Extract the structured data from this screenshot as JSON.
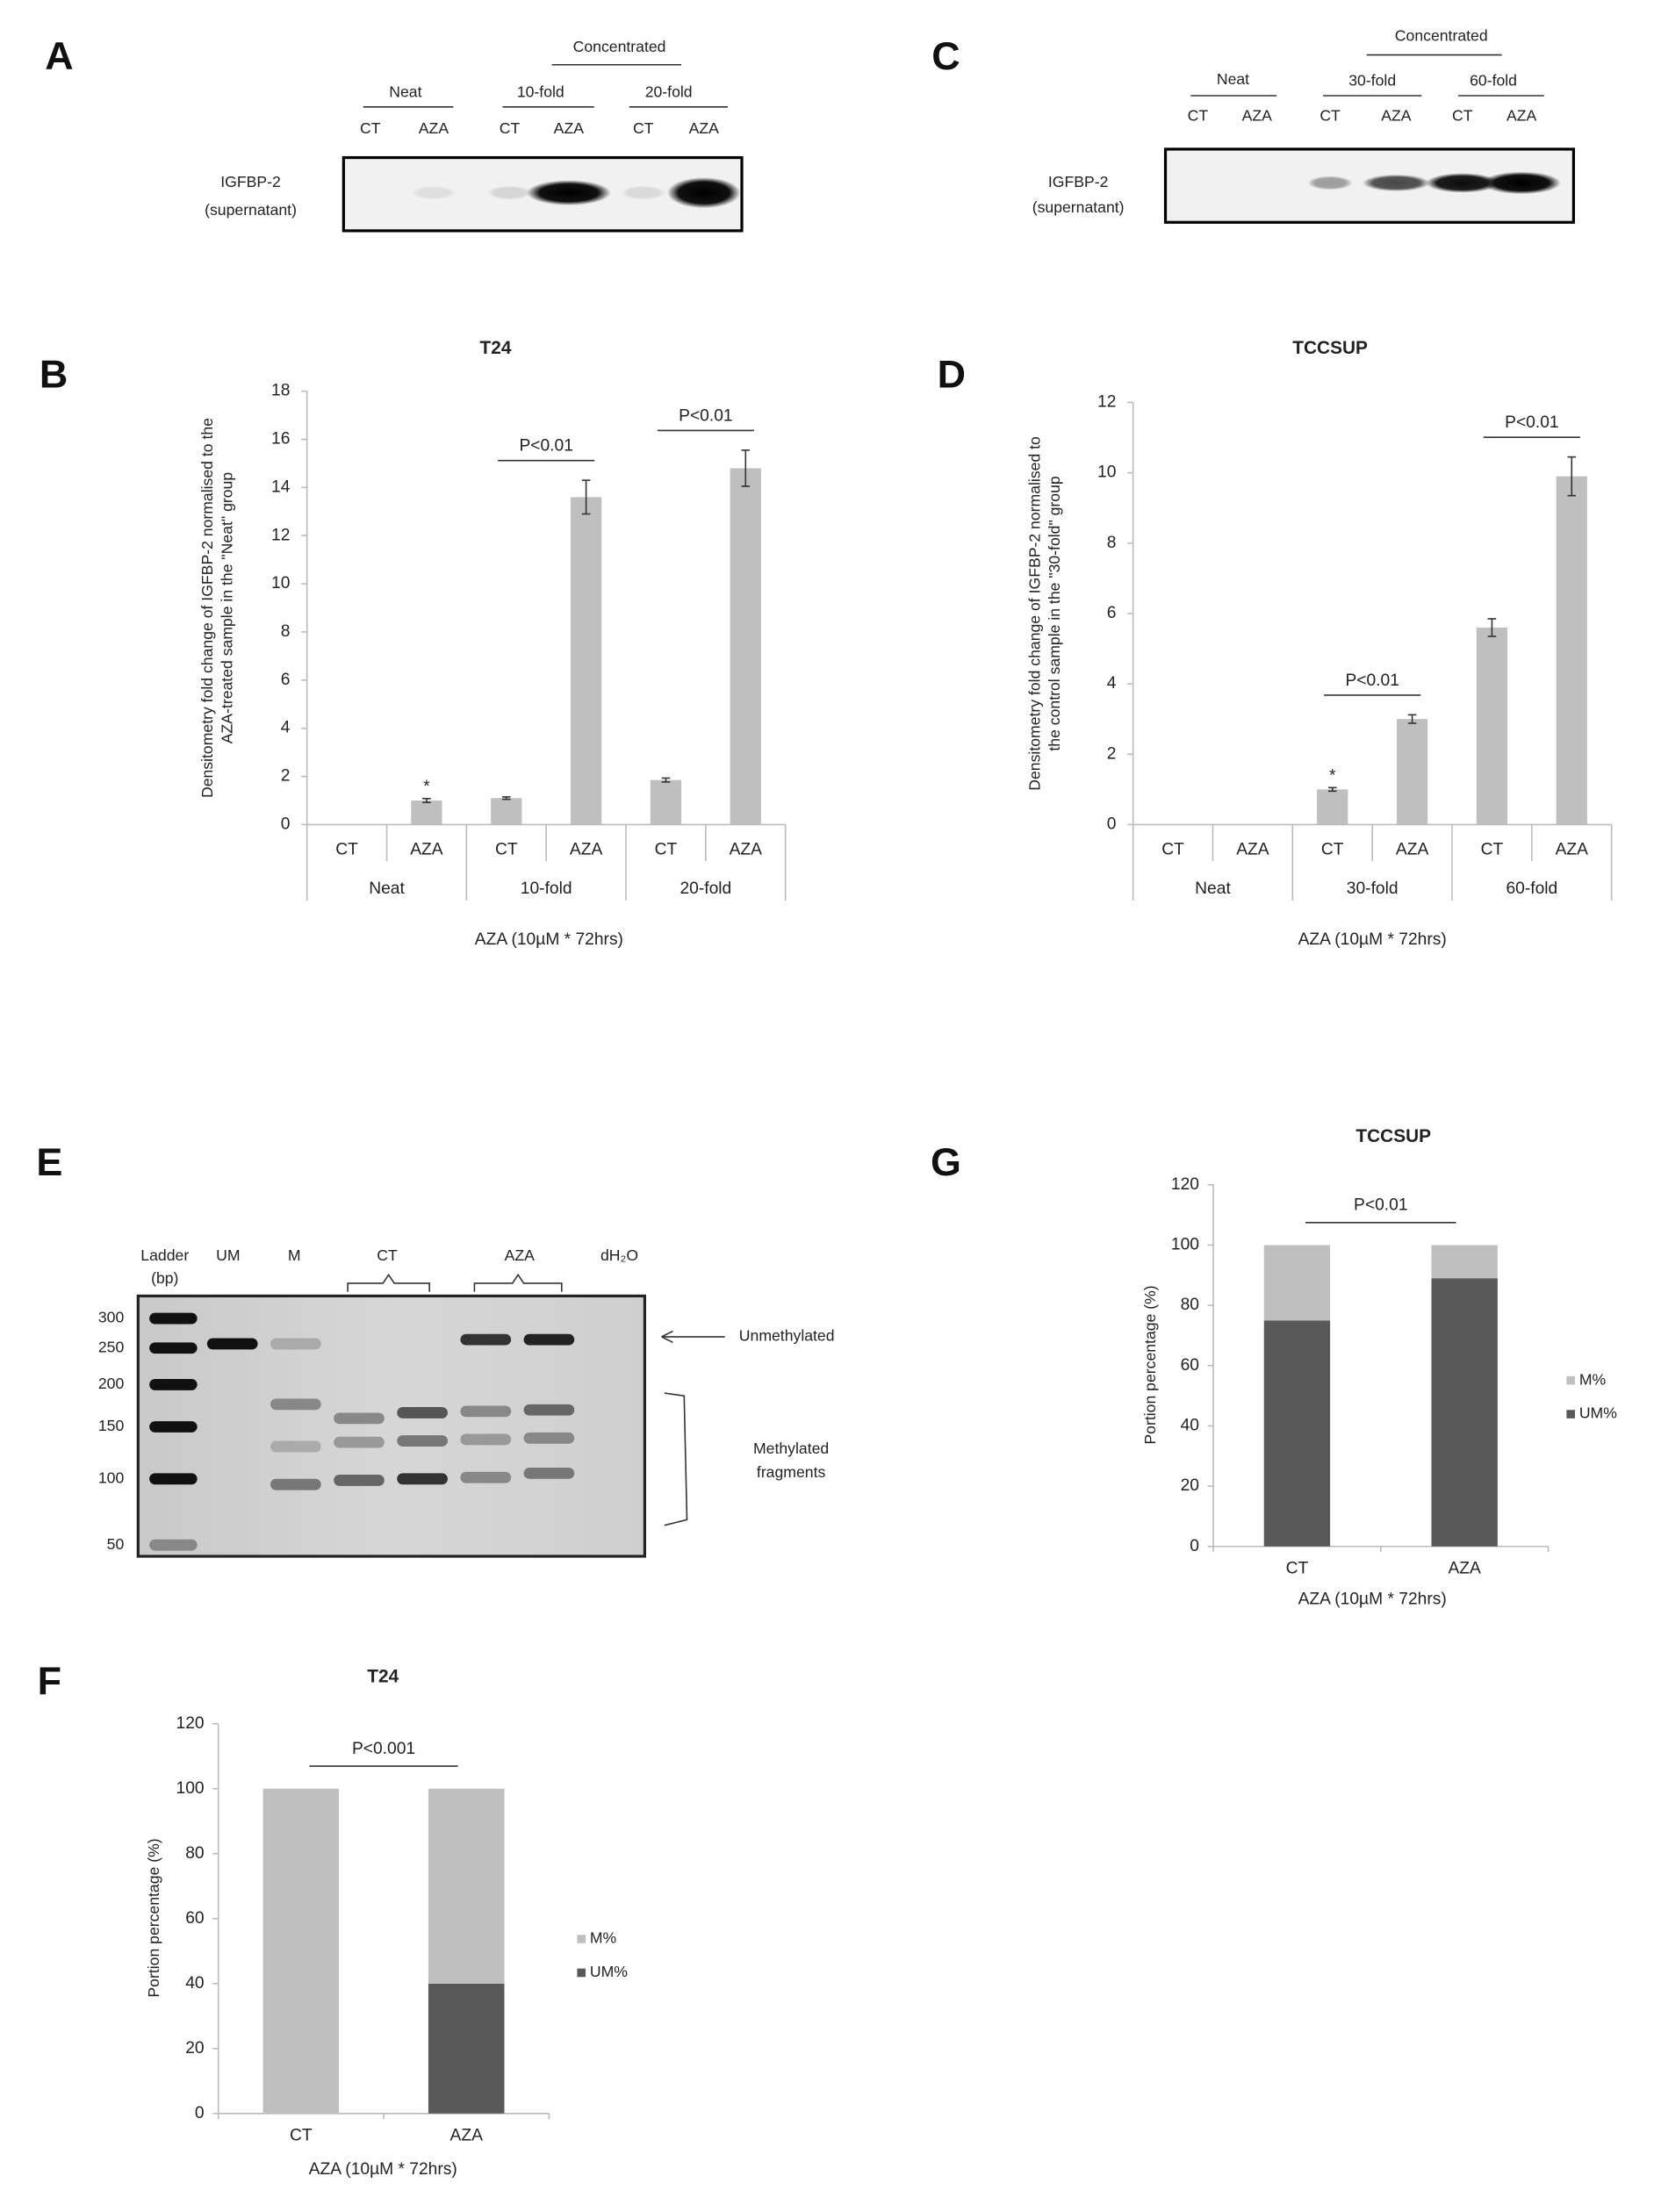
{
  "panels": {
    "labels": [
      "A",
      "B",
      "C",
      "D",
      "E",
      "F",
      "G"
    ]
  },
  "blots": [
    {
      "concentrated": "Concentrated",
      "groups": [
        "Neat",
        "10-fold",
        "20-fold"
      ],
      "lanes": [
        "CT",
        "AZA",
        "CT",
        "AZA",
        "CT",
        "AZA"
      ],
      "row_label": [
        "IGFBP-2",
        "(supernatant)"
      ]
    },
    {
      "concentrated": "Concentrated",
      "groups": [
        "Neat",
        "30-fold",
        "60-fold"
      ],
      "lanes": [
        "CT",
        "AZA",
        "CT",
        "AZA",
        "CT",
        "AZA"
      ],
      "row_label": [
        "IGFBP-2",
        "(supernatant)"
      ]
    }
  ],
  "gel": {
    "lanes": [
      [
        "Ladder",
        "(bp)"
      ],
      "UM",
      "M",
      "CT",
      "AZA",
      "dH₂O"
    ],
    "sizes": [
      300,
      250,
      200,
      150,
      100,
      50
    ],
    "unmethylated": "Unmethylated",
    "methylated": [
      "Methylated",
      "fragments"
    ]
  },
  "chart_data": [
    {
      "type": "bar",
      "title": "T24",
      "ylabel": [
        "Densitometry fold change of IGFBP-2 normalised to the",
        "AZA-treated  sample in the \"Neat\" group"
      ],
      "xlabel": "AZA (10µM * 72hrs)",
      "categories": [
        "CT",
        "AZA",
        "CT",
        "AZA",
        "CT",
        "AZA"
      ],
      "groups": [
        "Neat",
        "10-fold",
        "20-fold"
      ],
      "values": [
        0,
        1,
        1.1,
        13.6,
        1.85,
        14.8
      ],
      "errors": [
        0,
        0.08,
        0.05,
        0.7,
        0.08,
        0.75
      ],
      "color": "#bfbfbf",
      "ylim": [
        0,
        18
      ],
      "yticks": [
        0,
        2,
        4,
        6,
        8,
        10,
        12,
        14,
        16,
        18
      ],
      "annotations": [
        "P<0.01",
        "P<0.01",
        "*"
      ]
    },
    {
      "type": "bar",
      "title": "TCCSUP",
      "ylabel": [
        "Densitometry fold change of IGFBP-2 normalised to",
        "the control sample in the \"30-fold\" group"
      ],
      "xlabel": "AZA (10µM * 72hrs)",
      "categories": [
        "CT",
        "AZA",
        "CT",
        "AZA",
        "CT",
        "AZA"
      ],
      "groups": [
        "Neat",
        "30-fold",
        "60-fold"
      ],
      "values": [
        0,
        0,
        1,
        3,
        5.6,
        9.9
      ],
      "errors": [
        0,
        0,
        0.05,
        0.12,
        0.25,
        0.55
      ],
      "color": "#bfbfbf",
      "ylim": [
        0,
        12
      ],
      "yticks": [
        0,
        2,
        4,
        6,
        8,
        10,
        12
      ],
      "annotations": [
        "P<0.01",
        "P<0.01",
        "*"
      ]
    },
    {
      "type": "stacked_bar",
      "title": "TCCSUP",
      "ylabel": [
        "Portion percentage (%)"
      ],
      "xlabel": "AZA (10µM * 72hrs)",
      "categories": [
        "CT",
        "AZA"
      ],
      "series": [
        {
          "name": "M%",
          "color": "#bfbfbf",
          "values": [
            25,
            11
          ]
        },
        {
          "name": "UM%",
          "color": "#595959",
          "values": [
            75,
            89
          ]
        }
      ],
      "ylim": [
        0,
        120
      ],
      "yticks": [
        0,
        20,
        40,
        60,
        80,
        100,
        120
      ],
      "legend": "right",
      "annotations": [
        "P<0.01"
      ]
    },
    {
      "type": "stacked_bar",
      "title": "T24",
      "ylabel": [
        "Portion percentage (%)"
      ],
      "xlabel": "AZA (10µM * 72hrs)",
      "categories": [
        "CT",
        "AZA"
      ],
      "series": [
        {
          "name": "M%",
          "color": "#bfbfbf",
          "values": [
            100,
            60
          ]
        },
        {
          "name": "UM%",
          "color": "#595959",
          "values": [
            0,
            40
          ]
        }
      ],
      "ylim": [
        0,
        120
      ],
      "yticks": [
        0,
        20,
        40,
        60,
        80,
        100,
        120
      ],
      "legend": "right",
      "annotations": [
        "P<0.001"
      ]
    }
  ]
}
